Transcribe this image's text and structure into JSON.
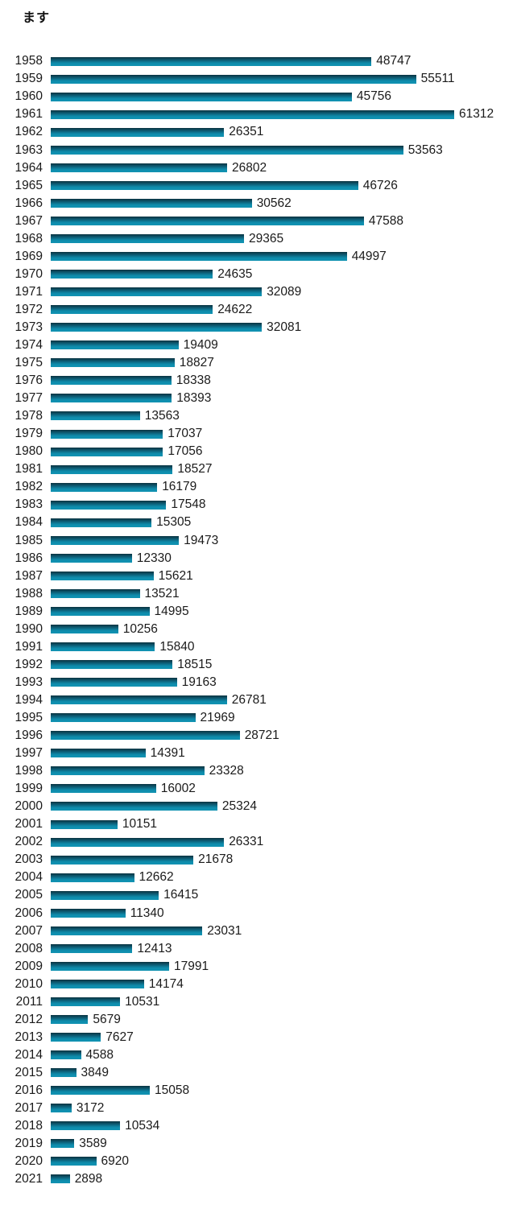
{
  "title": "ます",
  "colors": {
    "bar_gradient_top": "#0a3340",
    "bar_gradient_mid": "#0d5f78",
    "bar_gradient_bottom": "#1193b2",
    "text": "#1a1a1a",
    "background": "#ffffff"
  },
  "chart_data": {
    "type": "bar",
    "orientation": "horizontal",
    "title": "ます",
    "xlabel": "",
    "ylabel": "",
    "xlim": [
      0,
      61312
    ],
    "grid": false,
    "legend": false,
    "value_labels": true,
    "categories": [
      "1958",
      "1959",
      "1960",
      "1961",
      "1962",
      "1963",
      "1964",
      "1965",
      "1966",
      "1967",
      "1968",
      "1969",
      "1970",
      "1971",
      "1972",
      "1973",
      "1974",
      "1975",
      "1976",
      "1977",
      "1978",
      "1979",
      "1980",
      "1981",
      "1982",
      "1983",
      "1984",
      "1985",
      "1986",
      "1987",
      "1988",
      "1989",
      "1990",
      "1991",
      "1992",
      "1993",
      "1994",
      "1995",
      "1996",
      "1997",
      "1998",
      "1999",
      "2000",
      "2001",
      "2002",
      "2003",
      "2004",
      "2005",
      "2006",
      "2007",
      "2008",
      "2009",
      "2010",
      "2011",
      "2012",
      "2013",
      "2014",
      "2015",
      "2016",
      "2017",
      "2018",
      "2019",
      "2020",
      "2021"
    ],
    "values": [
      48747,
      55511,
      45756,
      61312,
      26351,
      53563,
      26802,
      46726,
      30562,
      47588,
      29365,
      44997,
      24635,
      32089,
      24622,
      32081,
      19409,
      18827,
      18338,
      18393,
      13563,
      17037,
      17056,
      18527,
      16179,
      17548,
      15305,
      19473,
      12330,
      15621,
      13521,
      14995,
      10256,
      15840,
      18515,
      19163,
      26781,
      21969,
      28721,
      14391,
      23328,
      16002,
      25324,
      10151,
      26331,
      21678,
      12662,
      16415,
      11340,
      23031,
      12413,
      17991,
      14174,
      10531,
      5679,
      7627,
      4588,
      3849,
      15058,
      3172,
      10534,
      3589,
      6920,
      2898
    ]
  }
}
